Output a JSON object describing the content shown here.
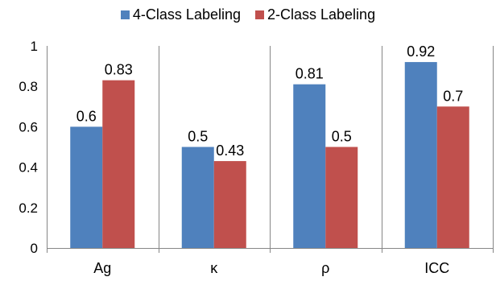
{
  "chart_data": {
    "type": "bar",
    "categories": [
      "Ag",
      "κ",
      "ρ",
      "ICC"
    ],
    "series": [
      {
        "name": "4-Class Labeling",
        "color": "#4F81BD",
        "values": [
          0.6,
          0.5,
          0.81,
          0.92
        ],
        "labels": [
          "0.6",
          "0.5",
          "0.81",
          "0.92"
        ]
      },
      {
        "name": "2-Class Labeling",
        "color": "#C0504D",
        "values": [
          0.83,
          0.43,
          0.5,
          0.7
        ],
        "labels": [
          "0.83",
          "0.43",
          "0.5",
          "0.7"
        ]
      }
    ],
    "yticks": [
      "0",
      "0.2",
      "0.4",
      "0.6",
      "0.8",
      "1"
    ],
    "ylim": [
      0,
      1
    ],
    "grid": "vertical category separators",
    "legend_position": "top"
  }
}
